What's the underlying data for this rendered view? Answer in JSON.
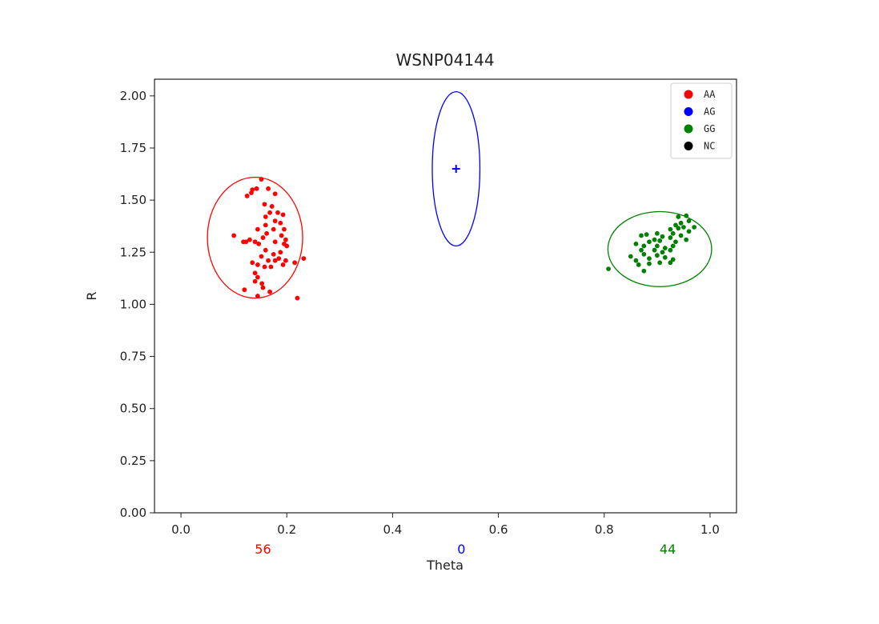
{
  "chart_data": {
    "type": "scatter",
    "title": "WSNP04144",
    "xlabel": "Theta",
    "ylabel": "R",
    "xlim": [
      -0.05,
      1.05
    ],
    "ylim": [
      0,
      2.08
    ],
    "xticks": [
      0.0,
      0.2,
      0.4,
      0.6,
      0.8,
      1.0
    ],
    "xtick_labels": [
      "0.0",
      "0.2",
      "0.4",
      "0.6",
      "0.8",
      "1.0"
    ],
    "yticks": [
      0,
      0.25,
      0.5,
      0.75,
      1.0,
      1.25,
      1.5,
      1.75,
      2.0
    ],
    "ytick_labels": [
      "0.00",
      "0.25",
      "0.50",
      "0.75",
      "1.00",
      "1.25",
      "1.50",
      "1.75",
      "2.00"
    ],
    "grid": false,
    "legend_position": "top-right",
    "legend": [
      {
        "label": "AA",
        "color": "#ff0000"
      },
      {
        "label": "AG",
        "color": "#0000ff"
      },
      {
        "label": "GG",
        "color": "#008000"
      },
      {
        "label": "NC",
        "color": "#000000"
      }
    ],
    "counts": [
      {
        "label": "56",
        "x": 0.155,
        "color": "#ff0000"
      },
      {
        "label": "0",
        "x": 0.53,
        "color": "#0000ff"
      },
      {
        "label": "44",
        "x": 0.92,
        "color": "#008000"
      }
    ],
    "ellipses": [
      {
        "name": "AA",
        "color": "#ff0000",
        "cx": 0.14,
        "cy": 1.32,
        "rx": 0.09,
        "ry": 0.29
      },
      {
        "name": "AG",
        "color": "#0000ff",
        "cx": 0.52,
        "cy": 1.65,
        "rx": 0.045,
        "ry": 0.37
      },
      {
        "name": "GG",
        "color": "#008000",
        "cx": 0.905,
        "cy": 1.265,
        "rx": 0.098,
        "ry": 0.18
      }
    ],
    "centroid_markers": [
      {
        "name": "AG",
        "color": "#0000ff",
        "x": 0.52,
        "y": 1.65
      }
    ],
    "series": [
      {
        "name": "AA",
        "color": "#ff0000",
        "points": [
          [
            0.152,
            1.6
          ],
          [
            0.135,
            1.55
          ],
          [
            0.143,
            1.555
          ],
          [
            0.125,
            1.52
          ],
          [
            0.133,
            1.535
          ],
          [
            0.165,
            1.555
          ],
          [
            0.178,
            1.53
          ],
          [
            0.158,
            1.48
          ],
          [
            0.172,
            1.47
          ],
          [
            0.168,
            1.44
          ],
          [
            0.183,
            1.44
          ],
          [
            0.193,
            1.43
          ],
          [
            0.16,
            1.42
          ],
          [
            0.178,
            1.4
          ],
          [
            0.188,
            1.39
          ],
          [
            0.16,
            1.38
          ],
          [
            0.175,
            1.36
          ],
          [
            0.195,
            1.36
          ],
          [
            0.145,
            1.36
          ],
          [
            0.162,
            1.34
          ],
          [
            0.19,
            1.33
          ],
          [
            0.155,
            1.32
          ],
          [
            0.198,
            1.31
          ],
          [
            0.1,
            1.33
          ],
          [
            0.118,
            1.3
          ],
          [
            0.123,
            1.3
          ],
          [
            0.13,
            1.31
          ],
          [
            0.14,
            1.3
          ],
          [
            0.147,
            1.29
          ],
          [
            0.178,
            1.3
          ],
          [
            0.195,
            1.29
          ],
          [
            0.2,
            1.28
          ],
          [
            0.16,
            1.26
          ],
          [
            0.175,
            1.24
          ],
          [
            0.188,
            1.25
          ],
          [
            0.152,
            1.23
          ],
          [
            0.165,
            1.21
          ],
          [
            0.178,
            1.21
          ],
          [
            0.185,
            1.22
          ],
          [
            0.198,
            1.21
          ],
          [
            0.215,
            1.2
          ],
          [
            0.232,
            1.22
          ],
          [
            0.135,
            1.2
          ],
          [
            0.145,
            1.19
          ],
          [
            0.158,
            1.18
          ],
          [
            0.17,
            1.18
          ],
          [
            0.193,
            1.19
          ],
          [
            0.14,
            1.15
          ],
          [
            0.145,
            1.13
          ],
          [
            0.14,
            1.11
          ],
          [
            0.153,
            1.1
          ],
          [
            0.155,
            1.08
          ],
          [
            0.12,
            1.07
          ],
          [
            0.145,
            1.04
          ],
          [
            0.168,
            1.06
          ],
          [
            0.22,
            1.03
          ]
        ]
      },
      {
        "name": "AG",
        "color": "#0000ff",
        "points": []
      },
      {
        "name": "GG",
        "color": "#008000",
        "points": [
          [
            0.94,
            1.42
          ],
          [
            0.955,
            1.425
          ],
          [
            0.945,
            1.39
          ],
          [
            0.96,
            1.4
          ],
          [
            0.95,
            1.37
          ],
          [
            0.935,
            1.38
          ],
          [
            0.925,
            1.36
          ],
          [
            0.94,
            1.365
          ],
          [
            0.97,
            1.37
          ],
          [
            0.96,
            1.35
          ],
          [
            0.9,
            1.34
          ],
          [
            0.93,
            1.34
          ],
          [
            0.87,
            1.33
          ],
          [
            0.88,
            1.335
          ],
          [
            0.91,
            1.325
          ],
          [
            0.925,
            1.32
          ],
          [
            0.945,
            1.33
          ],
          [
            0.955,
            1.31
          ],
          [
            0.895,
            1.31
          ],
          [
            0.905,
            1.305
          ],
          [
            0.935,
            1.3
          ],
          [
            0.86,
            1.29
          ],
          [
            0.875,
            1.28
          ],
          [
            0.885,
            1.3
          ],
          [
            0.9,
            1.28
          ],
          [
            0.915,
            1.27
          ],
          [
            0.93,
            1.28
          ],
          [
            0.87,
            1.26
          ],
          [
            0.895,
            1.26
          ],
          [
            0.91,
            1.25
          ],
          [
            0.925,
            1.26
          ],
          [
            0.85,
            1.23
          ],
          [
            0.875,
            1.24
          ],
          [
            0.885,
            1.22
          ],
          [
            0.9,
            1.235
          ],
          [
            0.915,
            1.225
          ],
          [
            0.93,
            1.215
          ],
          [
            0.86,
            1.21
          ],
          [
            0.885,
            1.195
          ],
          [
            0.905,
            1.2
          ],
          [
            0.925,
            1.2
          ],
          [
            0.865,
            1.19
          ],
          [
            0.875,
            1.16
          ],
          [
            0.808,
            1.17
          ]
        ]
      },
      {
        "name": "NC",
        "color": "#000000",
        "points": []
      }
    ]
  }
}
